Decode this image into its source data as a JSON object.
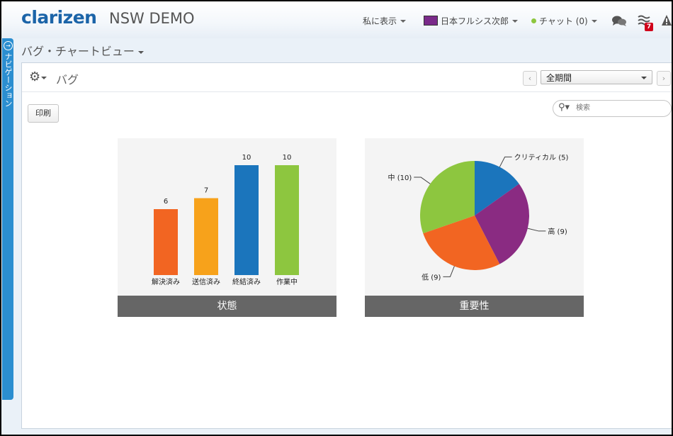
{
  "header": {
    "logo": "clarizen",
    "app_title": "NSW DEMO",
    "show_me": "私に表示",
    "user": "日本フルシス次郎",
    "chat": "チャット (0)",
    "notification_count": "7",
    "user_badge_color": "#7a2a8a"
  },
  "nav_tab": {
    "label": "ナビゲーション"
  },
  "view": {
    "title": "バグ・チャートビュー"
  },
  "panel": {
    "title": "バグ",
    "period": "全期間",
    "prev": "‹",
    "next": "›",
    "print": "印刷",
    "search_placeholder": "検索"
  },
  "chart_data": [
    {
      "type": "bar",
      "title": "状態",
      "categories": [
        "解決済み",
        "送信済み",
        "終結済み",
        "作業中"
      ],
      "values": [
        6,
        7,
        10,
        10
      ],
      "colors": [
        "#f26522",
        "#f7a21b",
        "#1b75bc",
        "#8dc63f"
      ],
      "ylim": [
        0,
        10
      ],
      "grid": false
    },
    {
      "type": "pie",
      "title": "重要性",
      "slices": [
        {
          "label": "クリティカル",
          "value": 5,
          "color": "#1b75bc",
          "text": "クリティカル (5)"
        },
        {
          "label": "高",
          "value": 9,
          "color": "#8a2b82",
          "text": "高 (9)"
        },
        {
          "label": "低",
          "value": 9,
          "color": "#f26522",
          "text": "低 (9)"
        },
        {
          "label": "中",
          "value": 10,
          "color": "#8dc63f",
          "text": "中 (10)"
        }
      ]
    }
  ]
}
